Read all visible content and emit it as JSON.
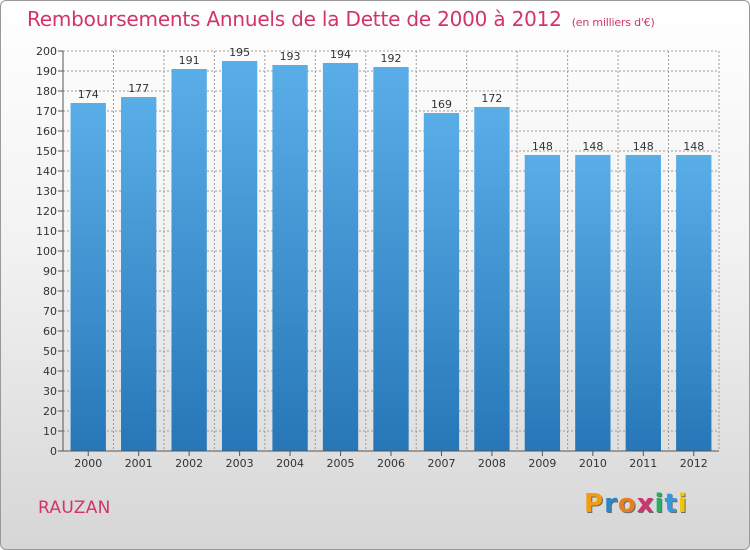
{
  "title": "Remboursements Annuels de la Dette de 2000 à 2012",
  "unit": "(en milliers d'€)",
  "commune": "RAUZAN",
  "brand": {
    "text": "Proxiti",
    "colors": [
      "#f39c12",
      "#2e86c1",
      "#e67e22",
      "#d2336d",
      "#27ae60",
      "#3498db",
      "#f1c40f"
    ]
  },
  "colors": {
    "bar_top": "#5aaee8",
    "bar_bottom": "#2777b8",
    "grid": "#9b9b9b",
    "title": "#d2336d"
  },
  "chart_data": {
    "type": "bar",
    "title": "Remboursements Annuels de la Dette de 2000 à 2012",
    "ylabel": "en milliers d'€",
    "xlabel": "",
    "categories": [
      "2000",
      "2001",
      "2002",
      "2003",
      "2004",
      "2005",
      "2006",
      "2007",
      "2008",
      "2009",
      "2010",
      "2011",
      "2012"
    ],
    "values": [
      174,
      177,
      191,
      195,
      193,
      194,
      192,
      169,
      172,
      148,
      148,
      148,
      148
    ],
    "ylim": [
      0,
      200
    ],
    "ytick_step": 10,
    "grid": true
  }
}
